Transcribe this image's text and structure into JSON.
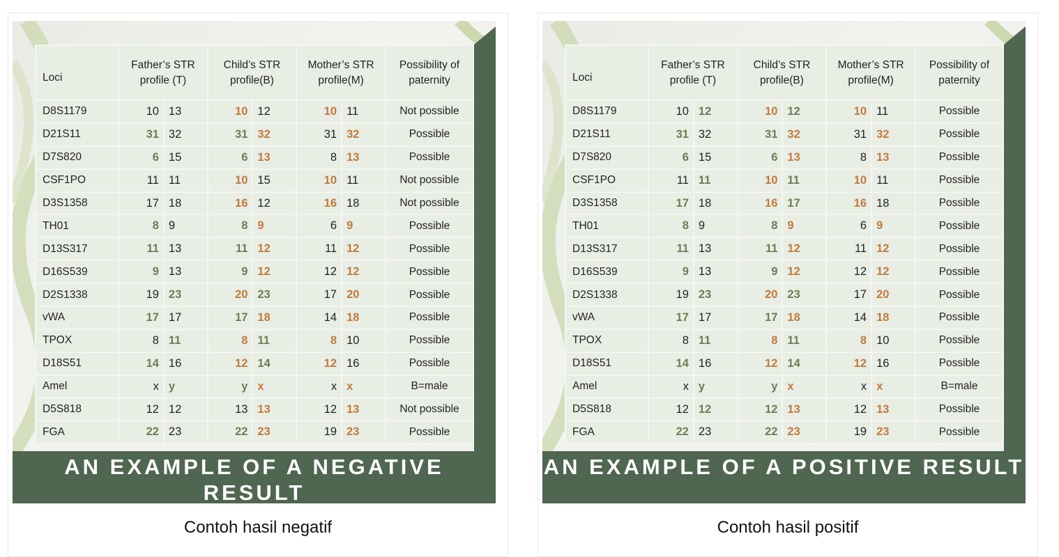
{
  "colors": {
    "background_dark": "#4f6650",
    "paternal_match": "#6f7c52",
    "maternal_match": "#c17a3b"
  },
  "headers": {
    "loci": "Loci",
    "father": "Father’s STR profile (T)",
    "child": "Child’s STR profile(B)",
    "mother": "Mother’s STR profile(M)",
    "possibility": "Possibility of paternity"
  },
  "cards": [
    {
      "banner": "AN EXAMPLE OF A NEGATIVE RESULT",
      "caption": "Contoh hasil negatif",
      "rows": [
        {
          "locus": "D8S1179",
          "father": [
            [
              "10",
              ""
            ],
            [
              "13",
              ""
            ]
          ],
          "child": [
            [
              "10",
              "o"
            ],
            [
              "12",
              ""
            ]
          ],
          "mother": [
            [
              "10",
              "o"
            ],
            [
              "11",
              ""
            ]
          ],
          "result": "Not possible"
        },
        {
          "locus": "D21S11",
          "father": [
            [
              "31",
              "g"
            ],
            [
              "32",
              ""
            ]
          ],
          "child": [
            [
              "31",
              "g"
            ],
            [
              "32",
              "o"
            ]
          ],
          "mother": [
            [
              "31",
              ""
            ],
            [
              "32",
              "o"
            ]
          ],
          "result": "Possible"
        },
        {
          "locus": "D7S820",
          "father": [
            [
              "6",
              "g"
            ],
            [
              "15",
              ""
            ]
          ],
          "child": [
            [
              "6",
              "g"
            ],
            [
              "13",
              "o"
            ]
          ],
          "mother": [
            [
              "8",
              ""
            ],
            [
              "13",
              "o"
            ]
          ],
          "result": "Possible"
        },
        {
          "locus": "CSF1PO",
          "father": [
            [
              "11",
              ""
            ],
            [
              "11",
              ""
            ]
          ],
          "child": [
            [
              "10",
              "o"
            ],
            [
              "15",
              ""
            ]
          ],
          "mother": [
            [
              "10",
              "o"
            ],
            [
              "11",
              ""
            ]
          ],
          "result": "Not possible"
        },
        {
          "locus": "D3S1358",
          "father": [
            [
              "17",
              ""
            ],
            [
              "18",
              ""
            ]
          ],
          "child": [
            [
              "16",
              "o"
            ],
            [
              "12",
              ""
            ]
          ],
          "mother": [
            [
              "16",
              "o"
            ],
            [
              "18",
              ""
            ]
          ],
          "result": "Not possible"
        },
        {
          "locus": "TH01",
          "father": [
            [
              "8",
              "g"
            ],
            [
              "9",
              ""
            ]
          ],
          "child": [
            [
              "8",
              "g"
            ],
            [
              "9",
              "o"
            ]
          ],
          "mother": [
            [
              "6",
              ""
            ],
            [
              "9",
              "o"
            ]
          ],
          "result": "Possible"
        },
        {
          "locus": "D13S317",
          "father": [
            [
              "11",
              "g"
            ],
            [
              "13",
              ""
            ]
          ],
          "child": [
            [
              "11",
              "g"
            ],
            [
              "12",
              "o"
            ]
          ],
          "mother": [
            [
              "11",
              ""
            ],
            [
              "12",
              "o"
            ]
          ],
          "result": "Possible"
        },
        {
          "locus": "D16S539",
          "father": [
            [
              "9",
              "g"
            ],
            [
              "13",
              ""
            ]
          ],
          "child": [
            [
              "9",
              "g"
            ],
            [
              "12",
              "o"
            ]
          ],
          "mother": [
            [
              "12",
              ""
            ],
            [
              "12",
              "o"
            ]
          ],
          "result": "Possible"
        },
        {
          "locus": "D2S1338",
          "father": [
            [
              "19",
              ""
            ],
            [
              "23",
              "g"
            ]
          ],
          "child": [
            [
              "20",
              "o"
            ],
            [
              "23",
              "g"
            ]
          ],
          "mother": [
            [
              "17",
              ""
            ],
            [
              "20",
              "o"
            ]
          ],
          "result": "Possible"
        },
        {
          "locus": "vWA",
          "father": [
            [
              "17",
              "g"
            ],
            [
              "17",
              ""
            ]
          ],
          "child": [
            [
              "17",
              "g"
            ],
            [
              "18",
              "o"
            ]
          ],
          "mother": [
            [
              "14",
              ""
            ],
            [
              "18",
              "o"
            ]
          ],
          "result": "Possible"
        },
        {
          "locus": "TPOX",
          "father": [
            [
              "8",
              ""
            ],
            [
              "11",
              "g"
            ]
          ],
          "child": [
            [
              "8",
              "o"
            ],
            [
              "11",
              "g"
            ]
          ],
          "mother": [
            [
              "8",
              "o"
            ],
            [
              "10",
              ""
            ]
          ],
          "result": "Possible"
        },
        {
          "locus": "D18S51",
          "father": [
            [
              "14",
              "g"
            ],
            [
              "16",
              ""
            ]
          ],
          "child": [
            [
              "12",
              "o"
            ],
            [
              "14",
              "g"
            ]
          ],
          "mother": [
            [
              "12",
              "o"
            ],
            [
              "16",
              ""
            ]
          ],
          "result": "Possible"
        },
        {
          "locus": "Amel",
          "father": [
            [
              "x",
              ""
            ],
            [
              "y",
              "g"
            ]
          ],
          "child": [
            [
              "y",
              "g"
            ],
            [
              "x",
              "o"
            ]
          ],
          "mother": [
            [
              "x",
              ""
            ],
            [
              "x",
              "o"
            ]
          ],
          "result": "B=male"
        },
        {
          "locus": "D5S818",
          "father": [
            [
              "12",
              ""
            ],
            [
              "12",
              ""
            ]
          ],
          "child": [
            [
              "13",
              ""
            ],
            [
              "13",
              "o"
            ]
          ],
          "mother": [
            [
              "12",
              ""
            ],
            [
              "13",
              "o"
            ]
          ],
          "result": "Not possible"
        },
        {
          "locus": "FGA",
          "father": [
            [
              "22",
              "g"
            ],
            [
              "23",
              ""
            ]
          ],
          "child": [
            [
              "22",
              "g"
            ],
            [
              "23",
              "o"
            ]
          ],
          "mother": [
            [
              "19",
              ""
            ],
            [
              "23",
              "o"
            ]
          ],
          "result": "Possible"
        }
      ]
    },
    {
      "banner": "AN EXAMPLE OF A POSITIVE RESULT",
      "caption": "Contoh hasil positif",
      "rows": [
        {
          "locus": "D8S1179",
          "father": [
            [
              "10",
              ""
            ],
            [
              "12",
              "g"
            ]
          ],
          "child": [
            [
              "10",
              "o"
            ],
            [
              "12",
              "g"
            ]
          ],
          "mother": [
            [
              "10",
              "o"
            ],
            [
              "11",
              ""
            ]
          ],
          "result": "Possible"
        },
        {
          "locus": "D21S11",
          "father": [
            [
              "31",
              "g"
            ],
            [
              "32",
              ""
            ]
          ],
          "child": [
            [
              "31",
              "g"
            ],
            [
              "32",
              "o"
            ]
          ],
          "mother": [
            [
              "31",
              ""
            ],
            [
              "32",
              "o"
            ]
          ],
          "result": "Possible"
        },
        {
          "locus": "D7S820",
          "father": [
            [
              "6",
              "g"
            ],
            [
              "15",
              ""
            ]
          ],
          "child": [
            [
              "6",
              "g"
            ],
            [
              "13",
              "o"
            ]
          ],
          "mother": [
            [
              "8",
              ""
            ],
            [
              "13",
              "o"
            ]
          ],
          "result": "Possible"
        },
        {
          "locus": "CSF1PO",
          "father": [
            [
              "11",
              ""
            ],
            [
              "11",
              "g"
            ]
          ],
          "child": [
            [
              "10",
              "o"
            ],
            [
              "11",
              "g"
            ]
          ],
          "mother": [
            [
              "10",
              "o"
            ],
            [
              "11",
              ""
            ]
          ],
          "result": "Possible"
        },
        {
          "locus": "D3S1358",
          "father": [
            [
              "17",
              "g"
            ],
            [
              "18",
              ""
            ]
          ],
          "child": [
            [
              "16",
              "o"
            ],
            [
              "17",
              "g"
            ]
          ],
          "mother": [
            [
              "16",
              "o"
            ],
            [
              "18",
              ""
            ]
          ],
          "result": "Possible"
        },
        {
          "locus": "TH01",
          "father": [
            [
              "8",
              "g"
            ],
            [
              "9",
              ""
            ]
          ],
          "child": [
            [
              "8",
              "g"
            ],
            [
              "9",
              "o"
            ]
          ],
          "mother": [
            [
              "6",
              ""
            ],
            [
              "9",
              "o"
            ]
          ],
          "result": "Possible"
        },
        {
          "locus": "D13S317",
          "father": [
            [
              "11",
              "g"
            ],
            [
              "13",
              ""
            ]
          ],
          "child": [
            [
              "11",
              "g"
            ],
            [
              "12",
              "o"
            ]
          ],
          "mother": [
            [
              "11",
              ""
            ],
            [
              "12",
              "o"
            ]
          ],
          "result": "Possible"
        },
        {
          "locus": "D16S539",
          "father": [
            [
              "9",
              "g"
            ],
            [
              "13",
              ""
            ]
          ],
          "child": [
            [
              "9",
              "g"
            ],
            [
              "12",
              "o"
            ]
          ],
          "mother": [
            [
              "12",
              ""
            ],
            [
              "12",
              "o"
            ]
          ],
          "result": "Possible"
        },
        {
          "locus": "D2S1338",
          "father": [
            [
              "19",
              ""
            ],
            [
              "23",
              "g"
            ]
          ],
          "child": [
            [
              "20",
              "o"
            ],
            [
              "23",
              "g"
            ]
          ],
          "mother": [
            [
              "17",
              ""
            ],
            [
              "20",
              "o"
            ]
          ],
          "result": "Possible"
        },
        {
          "locus": "vWA",
          "father": [
            [
              "17",
              "g"
            ],
            [
              "17",
              ""
            ]
          ],
          "child": [
            [
              "17",
              "g"
            ],
            [
              "18",
              "o"
            ]
          ],
          "mother": [
            [
              "14",
              ""
            ],
            [
              "18",
              "o"
            ]
          ],
          "result": "Possible"
        },
        {
          "locus": "TPOX",
          "father": [
            [
              "8",
              ""
            ],
            [
              "11",
              "g"
            ]
          ],
          "child": [
            [
              "8",
              "o"
            ],
            [
              "11",
              "g"
            ]
          ],
          "mother": [
            [
              "8",
              "o"
            ],
            [
              "10",
              ""
            ]
          ],
          "result": "Possible"
        },
        {
          "locus": "D18S51",
          "father": [
            [
              "14",
              "g"
            ],
            [
              "16",
              ""
            ]
          ],
          "child": [
            [
              "12",
              "o"
            ],
            [
              "14",
              "g"
            ]
          ],
          "mother": [
            [
              "12",
              "o"
            ],
            [
              "16",
              ""
            ]
          ],
          "result": "Possible"
        },
        {
          "locus": "Amel",
          "father": [
            [
              "x",
              ""
            ],
            [
              "y",
              "g"
            ]
          ],
          "child": [
            [
              "y",
              "g"
            ],
            [
              "x",
              "o"
            ]
          ],
          "mother": [
            [
              "x",
              ""
            ],
            [
              "x",
              "o"
            ]
          ],
          "result": "B=male"
        },
        {
          "locus": "D5S818",
          "father": [
            [
              "12",
              ""
            ],
            [
              "12",
              "g"
            ]
          ],
          "child": [
            [
              "12",
              "g"
            ],
            [
              "13",
              "o"
            ]
          ],
          "mother": [
            [
              "12",
              ""
            ],
            [
              "13",
              "o"
            ]
          ],
          "result": "Possible"
        },
        {
          "locus": "FGA",
          "father": [
            [
              "22",
              "g"
            ],
            [
              "23",
              ""
            ]
          ],
          "child": [
            [
              "22",
              "g"
            ],
            [
              "23",
              "o"
            ]
          ],
          "mother": [
            [
              "19",
              ""
            ],
            [
              "23",
              "o"
            ]
          ],
          "result": "Possible"
        }
      ]
    }
  ]
}
